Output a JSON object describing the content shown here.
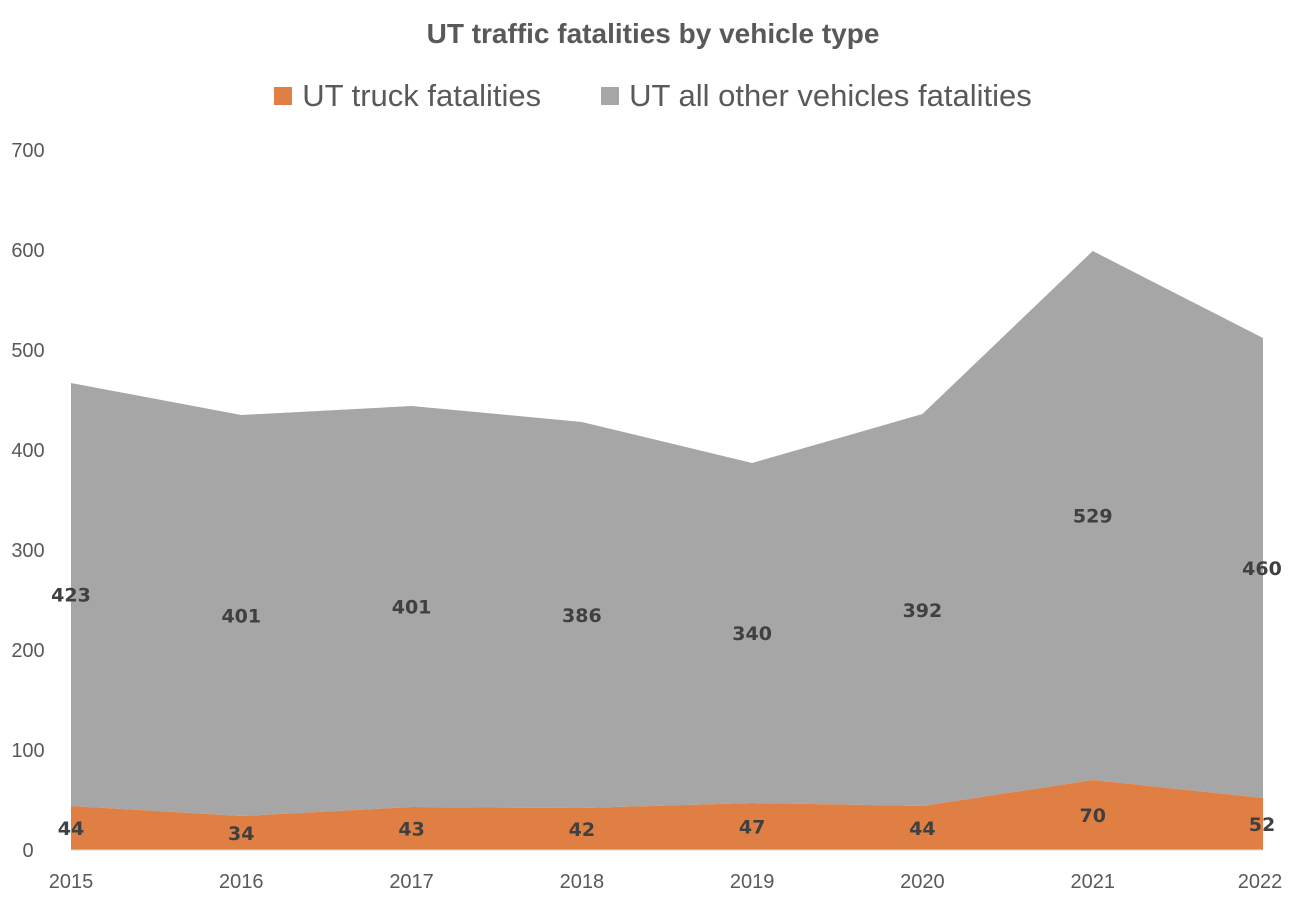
{
  "chart_data": {
    "type": "area",
    "stacked": true,
    "title": "UT traffic fatalities by vehicle type",
    "xlabel": "",
    "ylabel": "",
    "x": [
      "2015",
      "2016",
      "2017",
      "2018",
      "2019",
      "2020",
      "2021",
      "2022"
    ],
    "series": [
      {
        "name": "UT truck fatalities",
        "color": "#E07F43",
        "values": [
          44,
          34,
          43,
          42,
          47,
          44,
          70,
          52
        ]
      },
      {
        "name": "UT all other vehicles fatalities",
        "color": "#A6A6A6",
        "values": [
          423,
          401,
          401,
          386,
          340,
          392,
          529,
          460
        ]
      }
    ],
    "ylim": [
      0,
      700
    ],
    "yticks": [
      0,
      100,
      200,
      300,
      400,
      500,
      600,
      700
    ],
    "grid": false,
    "legend": "top",
    "data_labels": true
  }
}
